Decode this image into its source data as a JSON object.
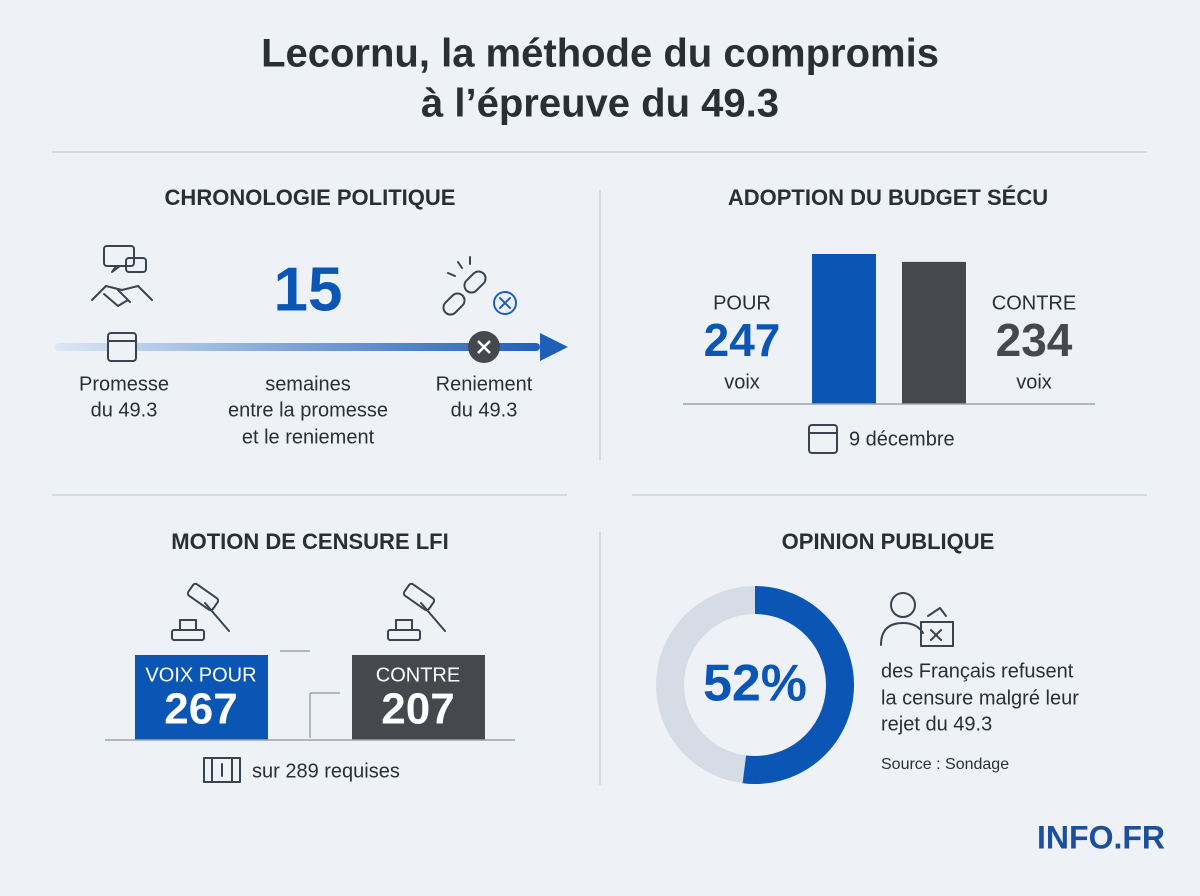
{
  "header": {
    "title_lines": [
      "Lecornu, la méthode du compromis",
      "à l’épreuve du 49.3"
    ]
  },
  "chronology": {
    "title": "CHRONOLOGIE POLITIQUE",
    "weeks": 15,
    "weeks_lines": [
      "semaines",
      "entre la promesse",
      "et le reniement"
    ],
    "start_lines": [
      "Promesse",
      "du 49.3"
    ],
    "end_lines": [
      "Reniement",
      "du 49.3"
    ]
  },
  "budget": {
    "title": "ADOPTION DU BUDGET SÉCU",
    "type": "bar",
    "categories": [
      "POUR",
      "CONTRE"
    ],
    "values": [
      247,
      234
    ],
    "colors": [
      "#0b56b5",
      "#45494e"
    ],
    "unit": "voix",
    "date": "9 décembre"
  },
  "censure": {
    "title": "MOTION DE CENSURE LFI",
    "categories": [
      "VOIX POUR",
      "CONTRE"
    ],
    "values": [
      267,
      207
    ],
    "colors": [
      "#0b56b5",
      "#45494e"
    ],
    "required": "sur 289 requises"
  },
  "opinion": {
    "title": "OPINION PUBLIQUE",
    "type": "donut",
    "value": 52,
    "value_label": "52%",
    "color": "#0b56b5",
    "text_lines": [
      "des Français refusent",
      "la censure malgré leur",
      "rejet du 49.3"
    ],
    "source": "Source : Sondage"
  },
  "footer": {
    "brand": "INFO.FR"
  }
}
